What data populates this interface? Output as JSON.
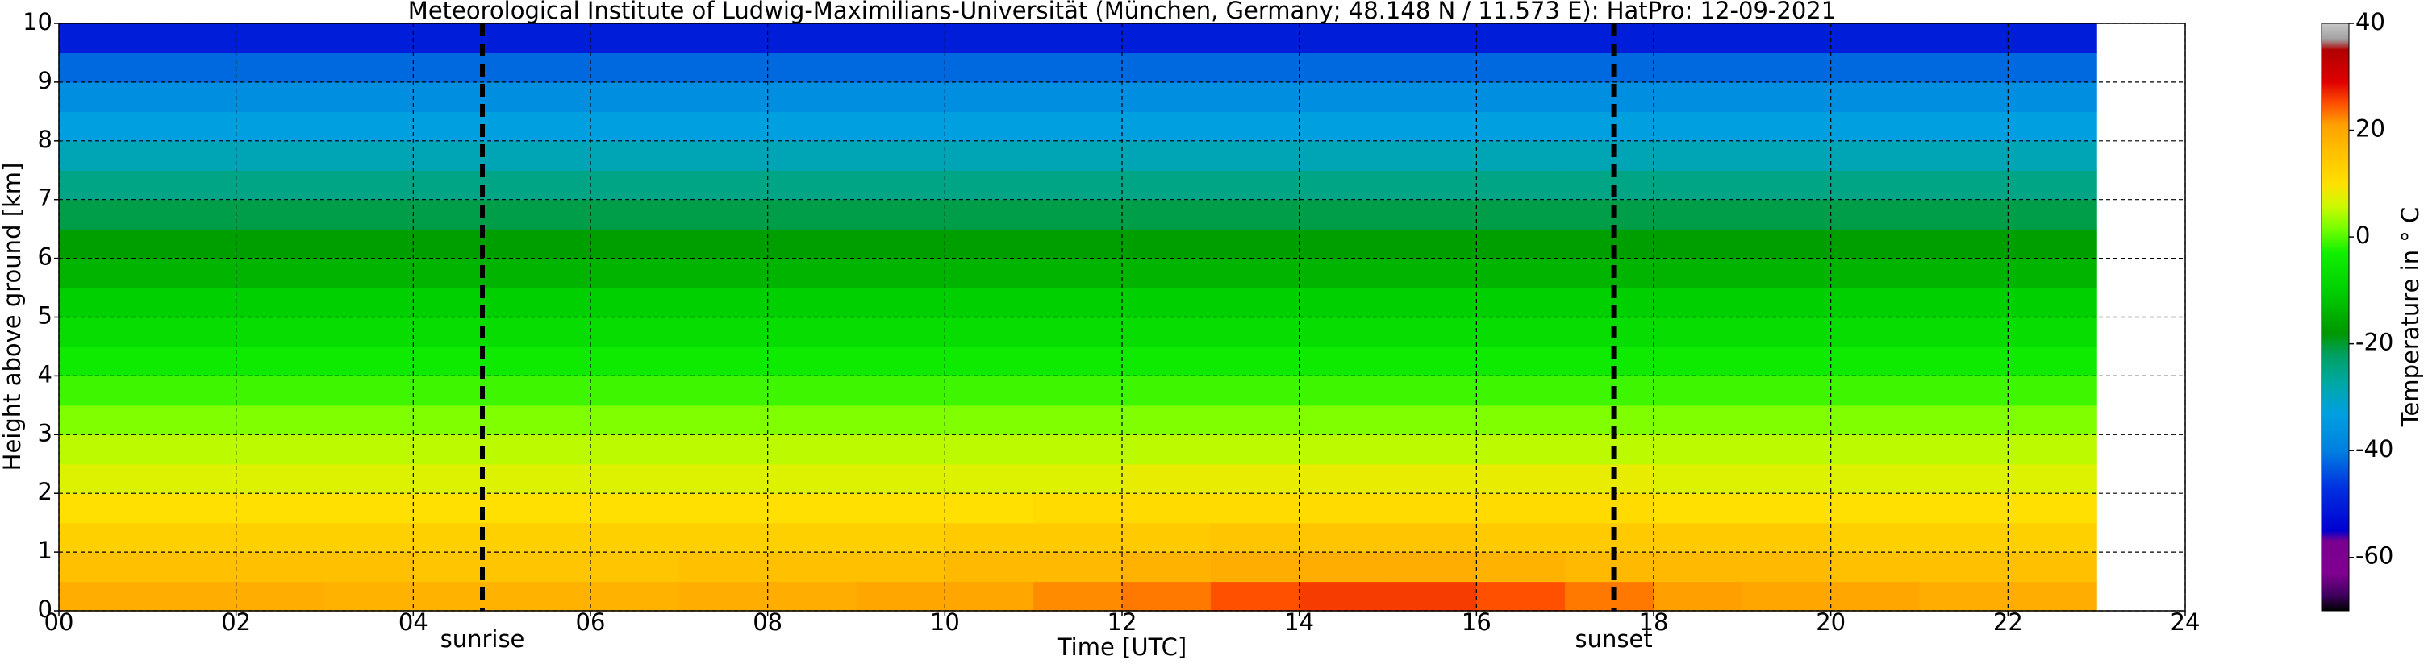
{
  "chart_data": {
    "type": "heatmap",
    "title": "Meteorological Institute of Ludwig-Maximilians-Universität (München, Germany; 48.148 N / 11.573 E):    HatPro: 12-09-2021",
    "x_label": "Time [UTC]",
    "y_label": "Height above ground [km]",
    "colorbar_label": "Temperature in ° C",
    "xlim": [
      0,
      24
    ],
    "ylim": [
      0,
      10
    ],
    "xticks": [
      {
        "value": 0,
        "label": "00"
      },
      {
        "value": 2,
        "label": "02"
      },
      {
        "value": 4,
        "label": "04"
      },
      {
        "value": 6,
        "label": "06"
      },
      {
        "value": 8,
        "label": "08"
      },
      10,
      12,
      14,
      16,
      18,
      20,
      22,
      24
    ],
    "yticks": [
      0,
      1,
      2,
      3,
      4,
      5,
      6,
      7,
      8,
      9,
      10
    ],
    "grid": true,
    "x_edges": [
      0,
      1,
      2,
      3,
      4,
      5,
      6,
      7,
      8,
      9,
      10,
      11,
      12,
      13,
      14,
      15,
      16,
      17,
      18,
      19,
      20,
      21,
      22,
      23
    ],
    "y_edges": [
      0,
      0.5,
      1,
      1.5,
      2,
      2.5,
      3,
      3.5,
      4,
      4.5,
      5,
      5.5,
      6,
      6.5,
      7,
      7.5,
      8,
      8.5,
      9,
      9.5,
      10
    ],
    "z": [
      [
        19,
        19,
        19,
        18,
        18,
        18,
        18,
        19,
        19,
        20,
        20,
        22,
        23,
        25,
        26,
        26,
        25,
        23,
        21,
        20,
        20,
        19,
        19
      ],
      [
        16,
        16,
        16,
        16,
        15,
        15,
        15,
        16,
        16,
        16,
        17,
        17,
        18,
        19,
        19,
        19,
        18,
        17,
        17,
        17,
        16,
        16,
        16
      ],
      [
        13,
        13,
        13,
        13,
        13,
        13,
        13,
        13,
        13,
        13,
        14,
        14,
        14,
        15,
        15,
        15,
        14,
        14,
        14,
        14,
        13,
        13,
        13
      ],
      [
        10,
        10,
        10,
        10,
        10,
        10,
        10,
        10,
        10,
        10,
        10,
        11,
        11,
        11,
        11,
        11,
        11,
        11,
        10,
        10,
        10,
        10,
        10
      ],
      [
        7,
        7,
        7,
        7,
        7,
        7,
        7,
        7,
        7,
        7,
        7,
        7,
        8,
        8,
        8,
        8,
        8,
        8,
        7,
        7,
        7,
        7,
        7
      ],
      [
        5,
        5,
        5,
        5,
        5,
        5,
        5,
        5,
        5,
        5,
        5,
        5,
        5,
        5,
        5,
        5,
        5,
        5,
        5,
        5,
        5,
        5,
        5
      ],
      [
        2,
        2,
        2,
        2,
        2,
        2,
        2,
        2,
        2,
        2,
        2,
        2,
        2,
        2,
        2,
        2,
        2,
        2,
        2,
        2,
        2,
        2,
        2
      ],
      [
        -1,
        -1,
        -1,
        -1,
        -1,
        -1,
        -1,
        -1,
        -1,
        -1,
        -1,
        -1,
        -1,
        -1,
        -1,
        -1,
        -1,
        -1,
        -1,
        -1,
        -1,
        -1,
        -1
      ],
      [
        -4,
        -4,
        -4,
        -4,
        -4,
        -4,
        -4,
        -4,
        -4,
        -4,
        -4,
        -4,
        -4,
        -4,
        -4,
        -4,
        -4,
        -4,
        -4,
        -4,
        -4,
        -4,
        -4
      ],
      [
        -7,
        -7,
        -7,
        -7,
        -7,
        -7,
        -7,
        -7,
        -7,
        -7,
        -7,
        -7,
        -7,
        -7,
        -7,
        -7,
        -7,
        -7,
        -7,
        -7,
        -7,
        -7,
        -7
      ],
      [
        -10,
        -10,
        -10,
        -10,
        -10,
        -10,
        -10,
        -10,
        -10,
        -10,
        -10,
        -10,
        -10,
        -10,
        -10,
        -10,
        -10,
        -10,
        -10,
        -10,
        -10,
        -10,
        -10
      ],
      [
        -14,
        -14,
        -14,
        -14,
        -14,
        -14,
        -14,
        -14,
        -14,
        -14,
        -14,
        -14,
        -14,
        -14,
        -14,
        -14,
        -14,
        -14,
        -14,
        -14,
        -14,
        -14,
        -14
      ],
      [
        -17,
        -17,
        -17,
        -17,
        -17,
        -17,
        -17,
        -17,
        -17,
        -17,
        -17,
        -17,
        -17,
        -17,
        -17,
        -17,
        -17,
        -17,
        -17,
        -17,
        -17,
        -17,
        -17
      ],
      [
        -21,
        -21,
        -21,
        -21,
        -21,
        -21,
        -21,
        -21,
        -21,
        -21,
        -21,
        -21,
        -21,
        -21,
        -21,
        -21,
        -21,
        -21,
        -21,
        -21,
        -21,
        -21,
        -21
      ],
      [
        -25,
        -25,
        -25,
        -25,
        -25,
        -25,
        -25,
        -25,
        -25,
        -25,
        -25,
        -25,
        -25,
        -25,
        -25,
        -25,
        -25,
        -25,
        -25,
        -25,
        -25,
        -25,
        -25
      ],
      [
        -29,
        -29,
        -29,
        -29,
        -29,
        -29,
        -29,
        -29,
        -29,
        -29,
        -29,
        -29,
        -29,
        -29,
        -29,
        -29,
        -29,
        -29,
        -29,
        -29,
        -29,
        -29,
        -29
      ],
      [
        -33,
        -33,
        -33,
        -33,
        -33,
        -33,
        -33,
        -33,
        -33,
        -33,
        -33,
        -33,
        -33,
        -33,
        -33,
        -33,
        -33,
        -33,
        -33,
        -33,
        -33,
        -33,
        -33
      ],
      [
        -37,
        -37,
        -37,
        -37,
        -37,
        -37,
        -37,
        -37,
        -37,
        -37,
        -37,
        -37,
        -37,
        -37,
        -37,
        -37,
        -37,
        -37,
        -37,
        -37,
        -37,
        -37,
        -37
      ],
      [
        -42,
        -42,
        -42,
        -42,
        -42,
        -42,
        -42,
        -42,
        -42,
        -42,
        -42,
        -42,
        -42,
        -42,
        -42,
        -42,
        -42,
        -42,
        -42,
        -42,
        -42,
        -42,
        -42
      ],
      [
        -50,
        -50,
        -50,
        -50,
        -50,
        -50,
        -50,
        -50,
        -50,
        -50,
        -50,
        -50,
        -50,
        -50,
        -50,
        -50,
        -50,
        -50,
        -50,
        -50,
        -50,
        -50,
        -50
      ]
    ],
    "clim": [
      -70,
      40
    ],
    "cticks": [
      -60,
      -40,
      -20,
      0,
      20,
      40
    ],
    "colorscale": [
      [
        -70,
        "#000000"
      ],
      [
        -67,
        "#400060"
      ],
      [
        -63,
        "#800090"
      ],
      [
        -57,
        "#7a0090"
      ],
      [
        -55,
        "#0000d0"
      ],
      [
        -47,
        "#0030e0"
      ],
      [
        -40,
        "#0080e0"
      ],
      [
        -33,
        "#00a0e0"
      ],
      [
        -27,
        "#00a8a0"
      ],
      [
        -22,
        "#00a060"
      ],
      [
        -18,
        "#009800"
      ],
      [
        -10,
        "#00d000"
      ],
      [
        -3,
        "#10f000"
      ],
      [
        2,
        "#80ff00"
      ],
      [
        6,
        "#d0f800"
      ],
      [
        10,
        "#ffe000"
      ],
      [
        16,
        "#ffc000"
      ],
      [
        21,
        "#ffa000"
      ],
      [
        25,
        "#ff5000"
      ],
      [
        29,
        "#e00000"
      ],
      [
        35,
        "#b00000"
      ],
      [
        37,
        "#a0a0a0"
      ],
      [
        40,
        "#c8c8c8"
      ]
    ],
    "annotations": [
      {
        "label": "sunrise",
        "x": 4.78
      },
      {
        "label": "sunset",
        "x": 17.55
      }
    ]
  }
}
